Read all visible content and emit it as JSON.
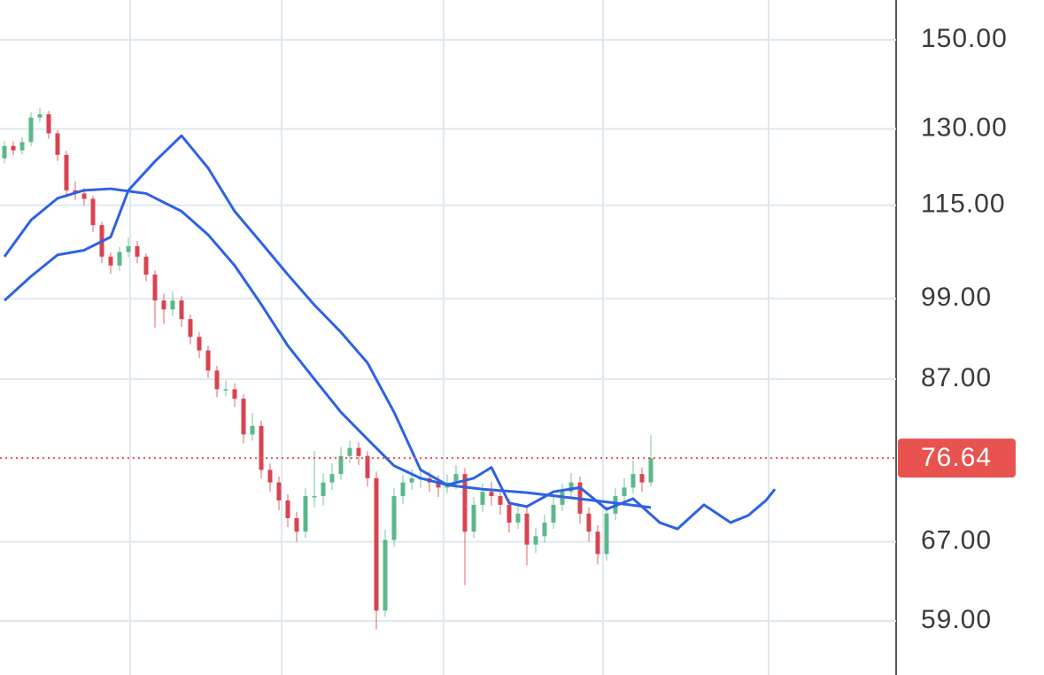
{
  "chart_data": {
    "type": "candlestick",
    "yscale": "log",
    "ylim": [
      54.1,
      159.9
    ],
    "yticks": [
      {
        "value": 150,
        "label": "150.00"
      },
      {
        "value": 130,
        "label": "130.00"
      },
      {
        "value": 115,
        "label": "115.00"
      },
      {
        "value": 99,
        "label": "99.00"
      },
      {
        "value": 87,
        "label": "87.00"
      },
      {
        "value": 67,
        "label": "67.00"
      },
      {
        "value": 59,
        "label": "59.00"
      }
    ],
    "grid": true,
    "last_price": 76.64,
    "last_price_color": "#e8534f",
    "up_color": "#5cb88a",
    "down_color": "#d9434f",
    "open": [
      124.0,
      126.5,
      125.6,
      127.3,
      132.4,
      133.1,
      129.1,
      124.7,
      117.8,
      117.2,
      116.2,
      111.4,
      105.9,
      104.4,
      106.7,
      107.7,
      105.9,
      102.9,
      98.7,
      97.3,
      98.7,
      95.8,
      93.1,
      91.1,
      88.2,
      85.6,
      85.6,
      84.3,
      79.6,
      80.7,
      75.2,
      73.7,
      71.6,
      69.6,
      68.1,
      72.1,
      72.1,
      73.7,
      74.7,
      76.9,
      77.9,
      76.9,
      74.2,
      60.0,
      67.2,
      72.1,
      73.7,
      74.2,
      74.2,
      73.7,
      73.1,
      73.7,
      74.7,
      68.1,
      71.1,
      72.6,
      72.1,
      71.1,
      69.1,
      70.1,
      66.7,
      67.6,
      69.1,
      71.1,
      72.6,
      73.7,
      70.1,
      68.1,
      65.7,
      70.1,
      72.1,
      73.1,
      74.7,
      73.7
    ],
    "high": [
      127.5,
      127.4,
      128.3,
      133.5,
      134.5,
      133.8,
      129.8,
      125.5,
      119.5,
      118.2,
      116.8,
      112.0,
      106.6,
      107.6,
      109.2,
      108.6,
      106.5,
      103.6,
      99.8,
      100.2,
      99.4,
      96.5,
      93.8,
      91.8,
      88.9,
      86.8,
      86.4,
      84.9,
      82.4,
      81.4,
      76.0,
      74.4,
      72.3,
      70.3,
      73.0,
      77.5,
      74.8,
      76.0,
      78.0,
      78.8,
      78.6,
      77.5,
      75.0,
      68.3,
      73.0,
      74.6,
      75.3,
      75.2,
      75.0,
      74.5,
      74.6,
      75.8,
      75.4,
      72.0,
      73.6,
      73.8,
      72.8,
      71.8,
      71.0,
      70.8,
      68.5,
      70.0,
      72.0,
      73.5,
      74.8,
      74.4,
      70.8,
      68.8,
      71.0,
      73.0,
      74.2,
      76.4,
      75.5,
      79.5
    ],
    "low": [
      123.0,
      124.6,
      124.8,
      126.5,
      131.5,
      128.0,
      123.5,
      116.5,
      116.0,
      115.0,
      110.2,
      104.8,
      103.0,
      103.5,
      105.8,
      104.8,
      101.8,
      94.5,
      95.0,
      96.2,
      94.6,
      92.0,
      90.0,
      87.2,
      84.5,
      84.6,
      83.2,
      78.5,
      78.8,
      74.2,
      72.6,
      70.5,
      68.6,
      67.0,
      67.4,
      70.8,
      71.0,
      72.8,
      74.0,
      76.0,
      75.8,
      73.2,
      58.2,
      59.4,
      66.5,
      71.2,
      72.8,
      73.0,
      72.6,
      72.0,
      72.4,
      72.9,
      62.5,
      67.4,
      70.3,
      71.0,
      70.0,
      68.0,
      68.4,
      64.5,
      65.8,
      66.9,
      68.4,
      70.4,
      71.9,
      69.0,
      67.0,
      64.6,
      65.0,
      69.4,
      71.2,
      72.4,
      72.6,
      73.2
    ],
    "close": [
      126.5,
      125.6,
      127.3,
      132.4,
      133.1,
      129.1,
      124.7,
      117.8,
      117.2,
      116.2,
      111.4,
      105.9,
      104.4,
      106.7,
      107.7,
      105.9,
      102.9,
      98.7,
      97.3,
      98.7,
      95.8,
      93.1,
      91.1,
      88.2,
      85.6,
      85.6,
      84.3,
      79.6,
      80.7,
      75.2,
      73.7,
      71.6,
      69.6,
      68.1,
      72.1,
      72.1,
      73.7,
      74.7,
      76.9,
      77.9,
      76.9,
      74.2,
      60.0,
      67.2,
      72.1,
      73.7,
      74.2,
      74.2,
      73.7,
      73.1,
      73.7,
      74.7,
      68.1,
      71.1,
      72.6,
      72.1,
      71.1,
      69.1,
      70.1,
      66.7,
      67.6,
      69.1,
      71.1,
      72.6,
      73.7,
      70.1,
      68.1,
      65.7,
      70.1,
      72.1,
      73.1,
      74.7,
      73.7,
      76.64
    ],
    "lines": [
      {
        "color": "#2d62e3",
        "x": [
          0,
          3,
          6,
          9,
          12,
          14,
          17,
          20,
          23,
          26,
          29,
          32,
          35,
          38,
          41,
          44,
          47,
          50,
          53,
          55,
          57,
          59,
          62,
          65,
          68,
          71,
          74,
          76,
          79,
          82,
          84,
          86,
          87
        ],
        "values": [
          98.7,
          102.6,
          106.2,
          107.0,
          109.3,
          117.8,
          123.4,
          128.6,
          122.1,
          113.9,
          108.3,
          102.9,
          98.0,
          93.8,
          89.3,
          82.5,
          75.2,
          73.4,
          74.2,
          75.5,
          71.3,
          70.9,
          72.6,
          73.1,
          70.6,
          71.8,
          69.1,
          68.4,
          71.1,
          69.1,
          69.9,
          71.6,
          72.9
        ]
      },
      {
        "color": "#2d62e3",
        "x": [
          0,
          3,
          6,
          9,
          12,
          16,
          20,
          23,
          26,
          29,
          32,
          35,
          38,
          41,
          44,
          47,
          50,
          54,
          59,
          64,
          69,
          73
        ],
        "values": [
          105.9,
          112.3,
          116.3,
          117.8,
          118.1,
          117.2,
          113.9,
          109.7,
          104.4,
          98.1,
          91.8,
          87.0,
          82.5,
          79.0,
          75.7,
          74.2,
          73.4,
          72.9,
          72.5,
          71.9,
          71.3,
          70.8
        ]
      }
    ]
  }
}
